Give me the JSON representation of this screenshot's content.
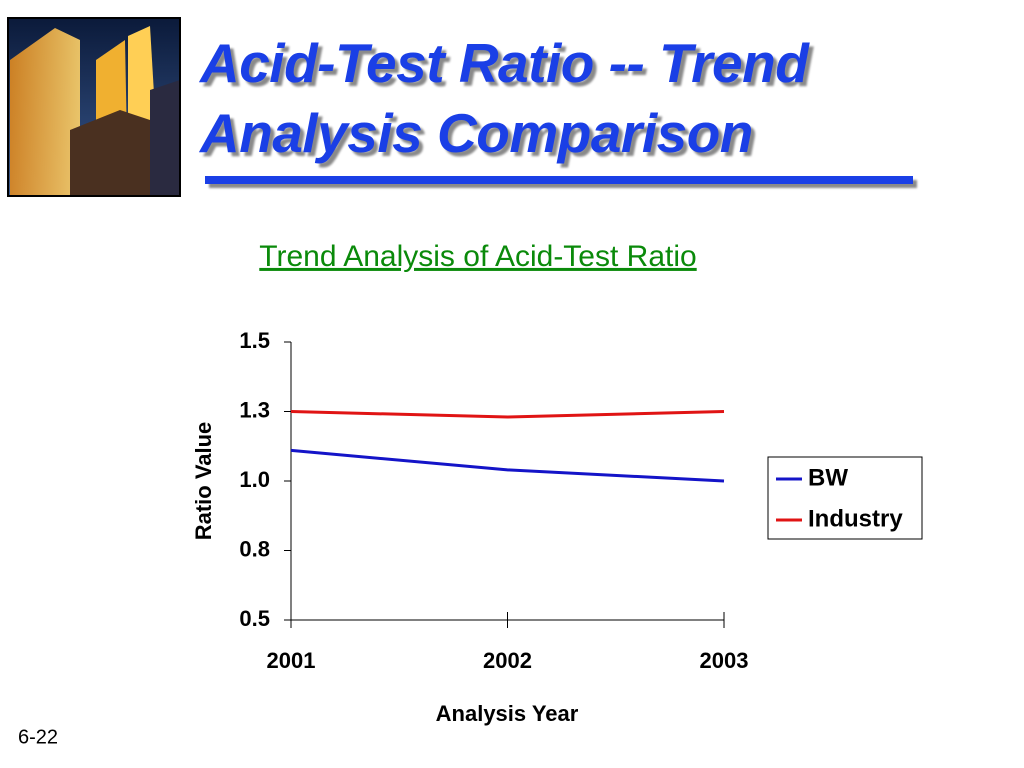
{
  "slide": {
    "title": "Acid-Test Ratio -- Trend Analysis Comparison",
    "page_number": "6-22"
  },
  "chart_data": {
    "type": "line",
    "title": "Trend Analysis of Acid-Test Ratio",
    "x_label": "Analysis Year",
    "y_label": "Ratio Value",
    "categories": [
      "2001",
      "2002",
      "2003"
    ],
    "series": [
      {
        "name": "BW",
        "color": "#1414c8",
        "values": [
          1.11,
          1.04,
          1.0
        ]
      },
      {
        "name": "Industry",
        "color": "#e01414",
        "values": [
          1.25,
          1.23,
          1.25
        ]
      }
    ],
    "ylim": [
      0.5,
      1.5
    ],
    "yticks": [
      {
        "value": 0.5,
        "label": "0.5"
      },
      {
        "value": 0.75,
        "label": "0.8"
      },
      {
        "value": 1.0,
        "label": "1.0"
      },
      {
        "value": 1.25,
        "label": "1.3"
      },
      {
        "value": 1.5,
        "label": "1.5"
      }
    ],
    "legend": "right",
    "grid": false
  }
}
